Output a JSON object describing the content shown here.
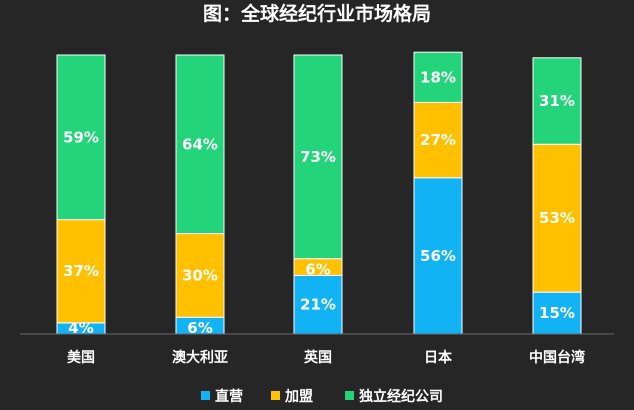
{
  "chart_data": {
    "type": "bar",
    "stacked": true,
    "title": "图：全球经纪行业市场格局",
    "categories": [
      "美国",
      "澳大利亚",
      "英国",
      "日本",
      "中国台湾"
    ],
    "series": [
      {
        "name": "直营",
        "color": "#12B3F5",
        "values": [
          4,
          6,
          21,
          56,
          15
        ],
        "labels": [
          "4%",
          "6%",
          "21%",
          "56%",
          "15%"
        ]
      },
      {
        "name": "加盟",
        "color": "#FFC000",
        "values": [
          37,
          30,
          6,
          27,
          53
        ],
        "labels": [
          "37%",
          "30%",
          "6%",
          "27%",
          "53%"
        ]
      },
      {
        "name": "独立经纪公司",
        "color": "#23D47A",
        "values": [
          59,
          64,
          73,
          18,
          31
        ],
        "labels": [
          "59%",
          "64%",
          "73%",
          "18%",
          "31%"
        ]
      }
    ],
    "ylim": [
      0,
      100
    ],
    "legend": "bottom"
  }
}
